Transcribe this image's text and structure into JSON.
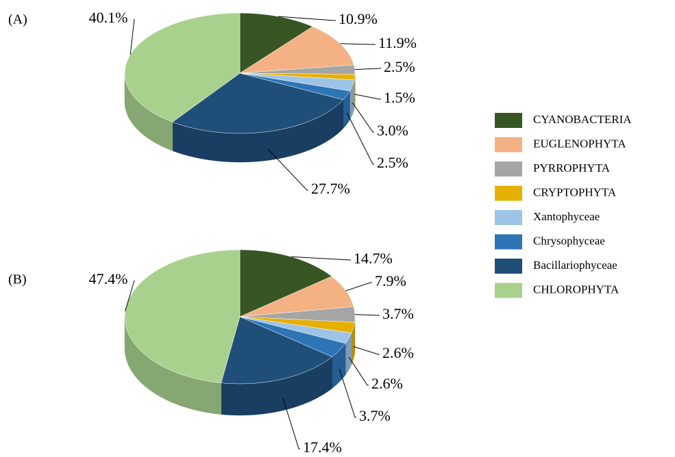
{
  "chart_data": [
    {
      "type": "pie",
      "label": "(A)",
      "categories": [
        "CYANOBACTERIA",
        "EUGLENOPHYTA",
        "PYRROPHYTA",
        "CRYPTOPHYTA",
        "Xantophyceae",
        "Chrysophyceae",
        "Bacillariophyceae",
        "CHLOROPHYTA"
      ],
      "values": [
        10.9,
        11.9,
        2.5,
        1.5,
        3.0,
        2.5,
        27.7,
        40.1
      ],
      "value_labels": [
        "10.9%",
        "11.9%",
        "2.5%",
        "1.5%",
        "3.0%",
        "2.5%",
        "27.7%",
        "40.1%"
      ],
      "colors": [
        "#375623",
        "#f4b183",
        "#a5a5a5",
        "#e6b000",
        "#9dc3e6",
        "#2e75b6",
        "#1f4e79",
        "#a9d18e"
      ]
    },
    {
      "type": "pie",
      "label": "(B)",
      "categories": [
        "CYANOBACTERIA",
        "EUGLENOPHYTA",
        "PYRROPHYTA",
        "CRYPTOPHYTA",
        "Xantophyceae",
        "Chrysophyceae",
        "Bacillariophyceae",
        "CHLOROPHYTA"
      ],
      "values": [
        14.7,
        7.9,
        3.7,
        2.6,
        2.6,
        3.7,
        17.4,
        47.4
      ],
      "value_labels": [
        "14.7%",
        "7.9%",
        "3.7%",
        "2.6%",
        "2.6%",
        "3.7%",
        "17.4%",
        "47.4%"
      ],
      "colors": [
        "#375623",
        "#f4b183",
        "#a5a5a5",
        "#e6b000",
        "#9dc3e6",
        "#2e75b6",
        "#1f4e79",
        "#a9d18e"
      ]
    }
  ]
}
